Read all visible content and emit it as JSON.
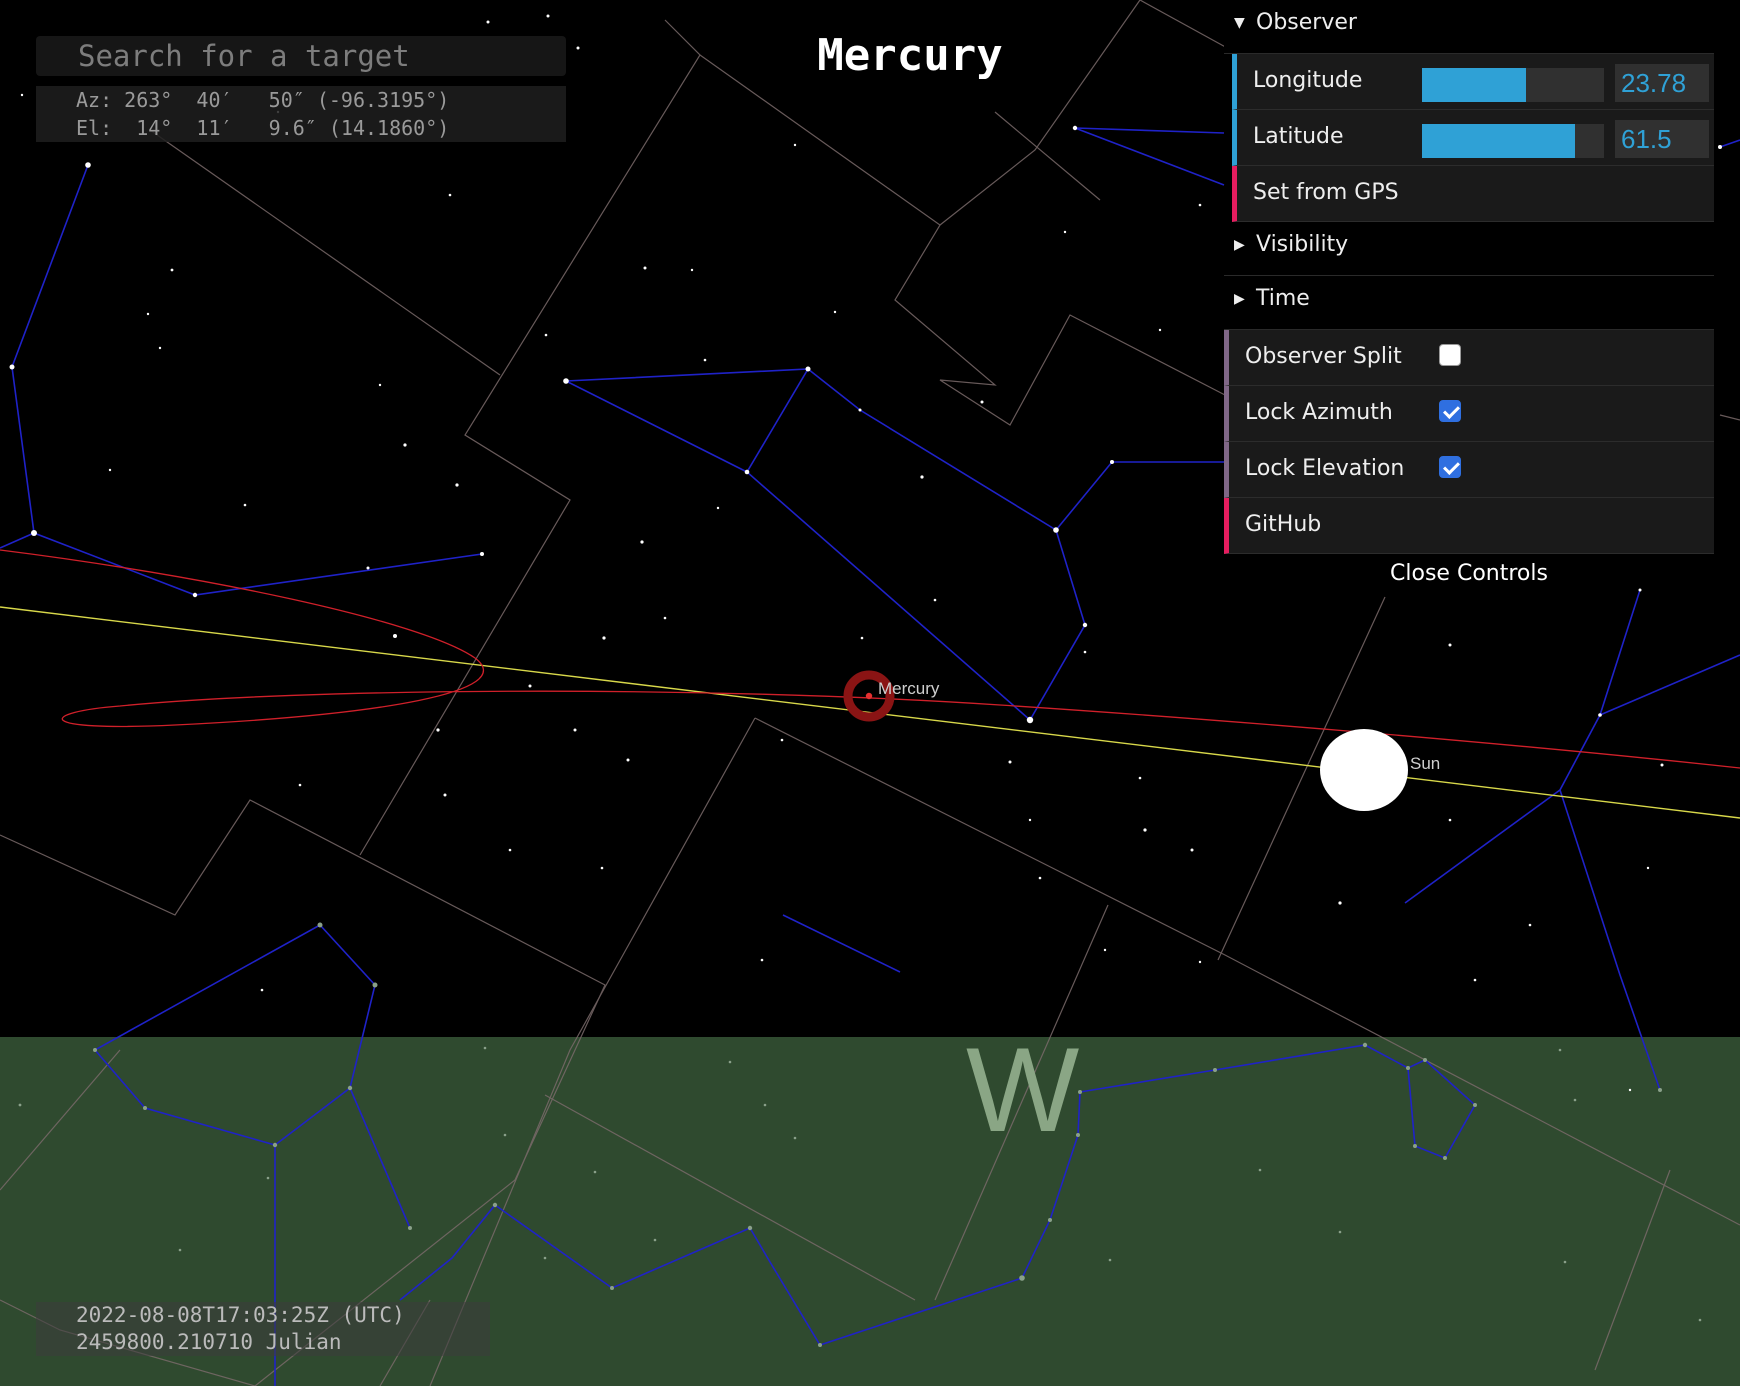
{
  "search": {
    "placeholder": "Search for a target"
  },
  "coords": {
    "az": "Az: 263°  40′   50″ (-96.3195°)",
    "el": "El:  14°  11′   9.6″ (14.1860°)"
  },
  "target_title": "Mercury",
  "time": {
    "utc": "2022-08-08T17:03:25Z (UTC)",
    "julian": "2459800.210710 Julian"
  },
  "compass_label": "W",
  "sky_labels": {
    "mercury": "Mercury",
    "sun": "Sun"
  },
  "controls": {
    "observer_folder": "Observer",
    "longitude_label": "Longitude",
    "longitude_value": "23.78",
    "longitude_fraction": 0.57,
    "latitude_label": "Latitude",
    "latitude_value": "61.5",
    "latitude_fraction": 0.84,
    "gps_label": "Set from GPS",
    "visibility_folder": "Visibility",
    "time_folder": "Time",
    "observer_split_label": "Observer Split",
    "observer_split_checked": false,
    "lock_azimuth_label": "Lock Azimuth",
    "lock_azimuth_checked": true,
    "lock_elevation_label": "Lock Elevation",
    "lock_elevation_checked": true,
    "github_label": "GitHub",
    "close_label": "Close Controls"
  },
  "colors": {
    "sky": "#000000",
    "ground": "#2f4a2f",
    "constellation_lines": "#1f22c8",
    "boundaries": "#7a6a6a",
    "ecliptic": "#d8d84a",
    "orbit": "#d0202a",
    "accent_number": "#2fa1d6",
    "accent_function": "#e61d5f"
  }
}
